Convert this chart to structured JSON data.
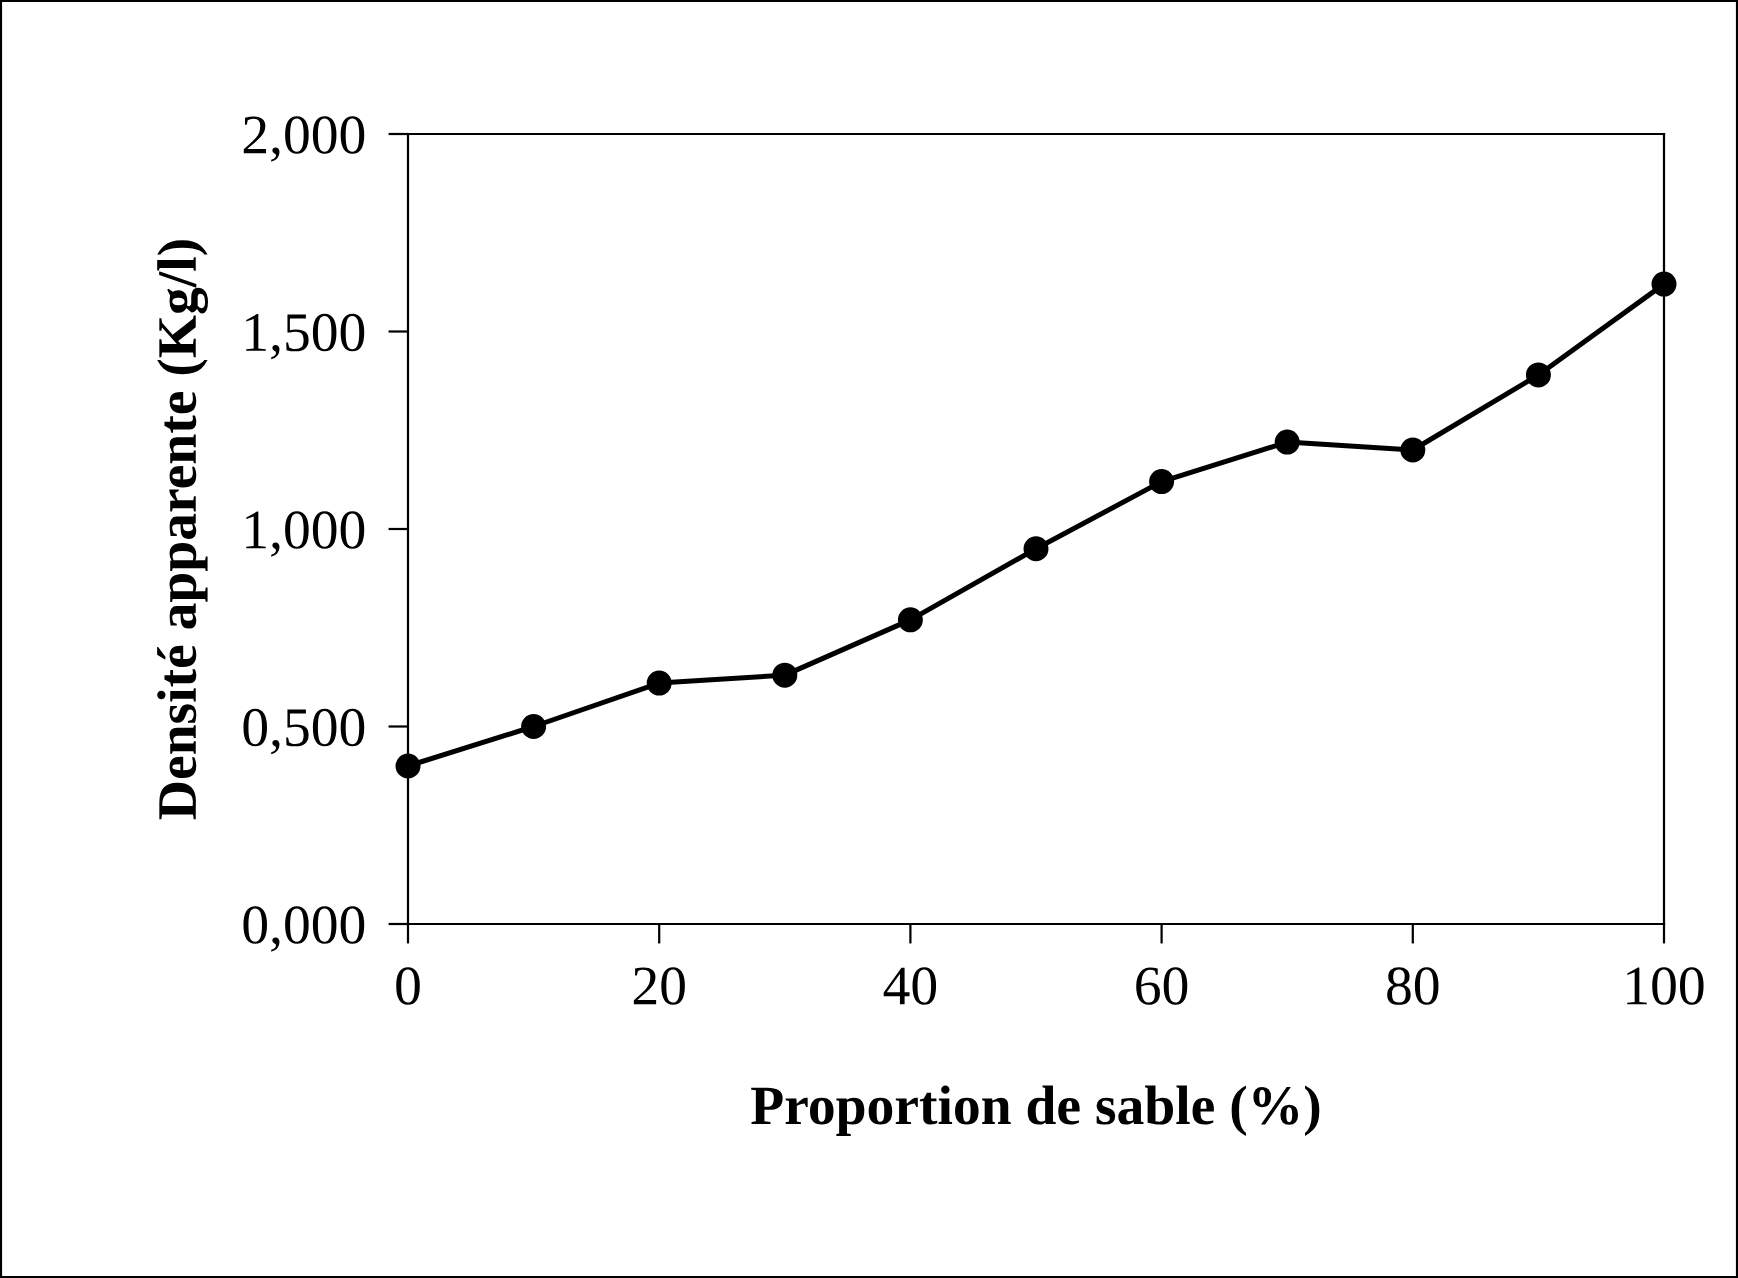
{
  "chart_data": {
    "type": "line",
    "xlabel": "Proportion de sable (%)",
    "ylabel": "Densité apparente (Kg/l)",
    "x": [
      0,
      10,
      20,
      30,
      40,
      50,
      60,
      70,
      80,
      90,
      100
    ],
    "series": [
      {
        "color": "#000000",
        "values": [
          0.4,
          0.5,
          0.61,
          0.63,
          0.77,
          0.95,
          1.12,
          1.22,
          1.2,
          1.39,
          1.62
        ]
      }
    ],
    "xlim": [
      0,
      100
    ],
    "xticks": [
      0,
      20,
      40,
      60,
      80,
      100
    ],
    "ylim": [
      0,
      2
    ],
    "yticks": [
      {
        "value": 0,
        "label": "0,000"
      },
      {
        "value": 0.5,
        "label": "0,500"
      },
      {
        "value": 1,
        "label": "1,000"
      },
      {
        "value": 1.5,
        "label": "1,500"
      },
      {
        "value": 2,
        "label": "2,000"
      }
    ],
    "grid": false,
    "legend": false,
    "marker": "circle",
    "line_style": "solid"
  }
}
